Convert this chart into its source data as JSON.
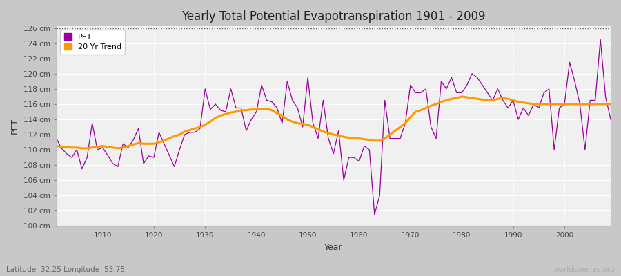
{
  "title": "Yearly Total Potential Evapotranspiration 1901 - 2009",
  "xlabel": "Year",
  "ylabel": "PET",
  "subtitle": "Latitude -32.25 Longitude -53.75",
  "watermark": "worldspecies.org",
  "ylim": [
    100,
    126
  ],
  "ytick_labels": [
    "100 cm",
    "102 cm",
    "104 cm",
    "106 cm",
    "108 cm",
    "110 cm",
    "112 cm",
    "114 cm",
    "116 cm",
    "118 cm",
    "120 cm",
    "122 cm",
    "124 cm",
    "126 cm"
  ],
  "ytick_values": [
    100,
    102,
    104,
    106,
    108,
    110,
    112,
    114,
    116,
    118,
    120,
    122,
    124,
    126
  ],
  "xlim": [
    1901,
    2009
  ],
  "xtick_values": [
    1910,
    1920,
    1930,
    1940,
    1950,
    1960,
    1970,
    1980,
    1990,
    2000
  ],
  "pet_color": "#990099",
  "trend_color": "#ff9900",
  "fig_bg_color": "#c8c8c8",
  "plot_bg_color": "#f0f0f0",
  "grid_color": "#ffffff",
  "dotted_line_y": 126,
  "years": [
    1901,
    1902,
    1903,
    1904,
    1905,
    1906,
    1907,
    1908,
    1909,
    1910,
    1911,
    1912,
    1913,
    1914,
    1915,
    1916,
    1917,
    1918,
    1919,
    1920,
    1921,
    1922,
    1923,
    1924,
    1925,
    1926,
    1927,
    1928,
    1929,
    1930,
    1931,
    1932,
    1933,
    1934,
    1935,
    1936,
    1937,
    1938,
    1939,
    1940,
    1941,
    1942,
    1943,
    1944,
    1945,
    1946,
    1947,
    1948,
    1949,
    1950,
    1951,
    1952,
    1953,
    1954,
    1955,
    1956,
    1957,
    1958,
    1959,
    1960,
    1961,
    1962,
    1963,
    1964,
    1965,
    1966,
    1967,
    1968,
    1969,
    1970,
    1971,
    1972,
    1973,
    1974,
    1975,
    1976,
    1977,
    1978,
    1979,
    1980,
    1981,
    1982,
    1983,
    1984,
    1985,
    1986,
    1987,
    1988,
    1989,
    1990,
    1991,
    1992,
    1993,
    1994,
    1995,
    1996,
    1997,
    1998,
    1999,
    2000,
    2001,
    2002,
    2003,
    2004,
    2005,
    2006,
    2007,
    2008,
    2009
  ],
  "pet_values": [
    111.5,
    110.2,
    109.5,
    109.0,
    110.0,
    107.5,
    109.0,
    113.5,
    110.0,
    110.3,
    109.3,
    108.2,
    107.8,
    110.8,
    110.3,
    111.3,
    112.8,
    108.2,
    109.2,
    109.0,
    112.3,
    110.8,
    109.3,
    107.8,
    110.0,
    112.0,
    112.3,
    112.3,
    112.8,
    118.0,
    115.3,
    116.0,
    115.2,
    115.0,
    118.0,
    115.5,
    115.5,
    112.5,
    114.0,
    115.0,
    118.5,
    116.5,
    116.3,
    115.5,
    113.5,
    119.0,
    116.5,
    115.5,
    113.0,
    119.5,
    113.5,
    111.5,
    116.5,
    111.5,
    109.5,
    112.5,
    106.0,
    109.0,
    109.0,
    108.5,
    110.5,
    110.0,
    101.5,
    104.0,
    116.5,
    111.5,
    111.5,
    111.5,
    113.5,
    118.5,
    117.5,
    117.5,
    118.0,
    113.0,
    111.5,
    119.0,
    118.0,
    119.5,
    117.5,
    117.5,
    118.5,
    120.0,
    119.5,
    118.5,
    117.5,
    116.5,
    118.0,
    116.5,
    115.5,
    116.5,
    114.0,
    115.5,
    114.5,
    116.0,
    115.5,
    117.5,
    118.0,
    110.0,
    115.5,
    116.0,
    121.5,
    119.0,
    116.0,
    110.0,
    116.5,
    116.5,
    124.5,
    117.0,
    114.0
  ],
  "trend_values": [
    110.5,
    110.4,
    110.4,
    110.3,
    110.3,
    110.2,
    110.2,
    110.3,
    110.4,
    110.5,
    110.4,
    110.3,
    110.2,
    110.3,
    110.5,
    110.7,
    110.9,
    110.8,
    110.8,
    110.8,
    111.0,
    111.2,
    111.5,
    111.8,
    112.0,
    112.4,
    112.6,
    112.8,
    113.0,
    113.3,
    113.7,
    114.2,
    114.5,
    114.7,
    114.9,
    115.0,
    115.2,
    115.2,
    115.3,
    115.3,
    115.4,
    115.4,
    115.2,
    114.8,
    114.5,
    114.0,
    113.7,
    113.5,
    113.4,
    113.3,
    113.0,
    112.7,
    112.4,
    112.2,
    112.0,
    111.9,
    111.7,
    111.6,
    111.5,
    111.5,
    111.4,
    111.3,
    111.2,
    111.2,
    111.5,
    112.0,
    112.5,
    113.0,
    113.5,
    114.3,
    115.0,
    115.2,
    115.5,
    115.8,
    116.0,
    116.3,
    116.5,
    116.7,
    116.8,
    117.0,
    116.9,
    116.8,
    116.7,
    116.6,
    116.5,
    116.5,
    116.7,
    116.8,
    116.7,
    116.5,
    116.3,
    116.2,
    116.1,
    116.0,
    116.0,
    116.0,
    116.0,
    116.0,
    116.0,
    116.0,
    116.0,
    116.0,
    116.0,
    116.0,
    116.0,
    116.0,
    116.0,
    116.0,
    116.0
  ]
}
